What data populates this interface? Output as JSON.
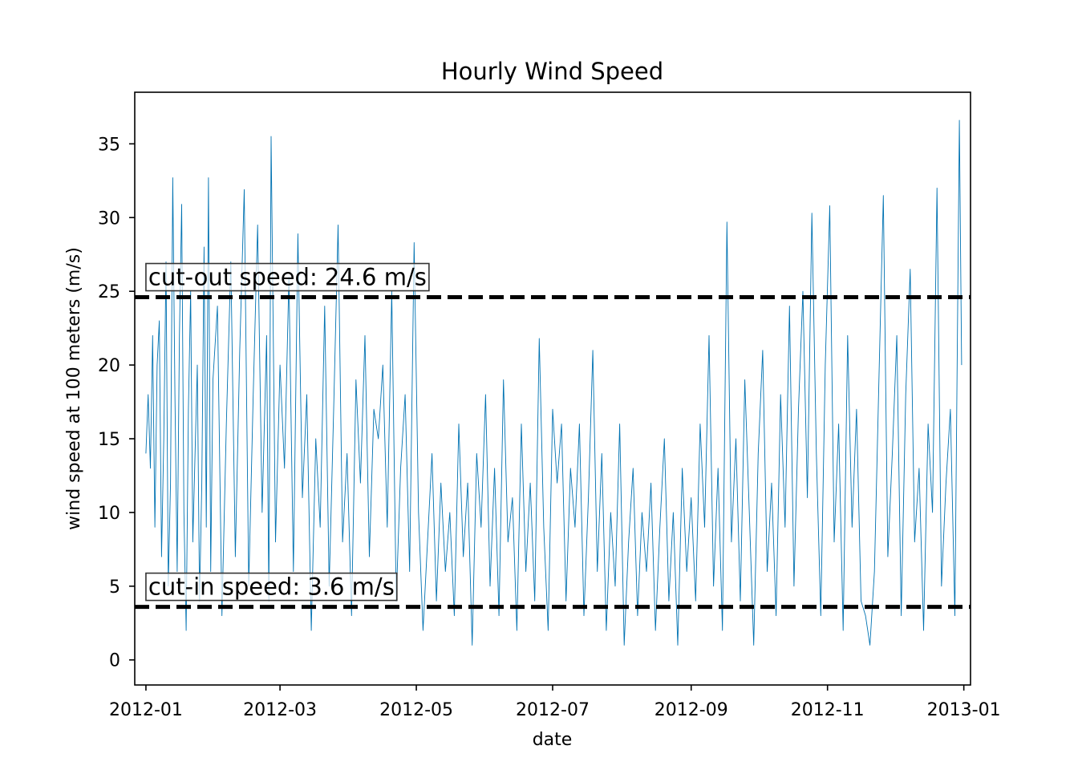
{
  "chart_data": {
    "type": "line",
    "title": "Hourly Wind Speed",
    "xlabel": "date",
    "ylabel": "wind speed at 100 meters (m/s)",
    "xlim": [
      "2011-12-27",
      "2013-01-04"
    ],
    "ylim": [
      -1.7,
      38.5
    ],
    "x_ticks": [
      "2012-01",
      "2012-03",
      "2012-05",
      "2012-07",
      "2012-09",
      "2012-11",
      "2013-01"
    ],
    "y_ticks": [
      0,
      5,
      10,
      15,
      20,
      25,
      30,
      35
    ],
    "grid": false,
    "series": [
      {
        "color": "#0072b2",
        "points": [
          [
            "2012-01-01",
            14
          ],
          [
            "2012-01-02",
            18
          ],
          [
            "2012-01-03",
            13
          ],
          [
            "2012-01-04",
            22
          ],
          [
            "2012-01-05",
            9
          ],
          [
            "2012-01-06",
            20
          ],
          [
            "2012-01-07",
            23
          ],
          [
            "2012-01-08",
            7
          ],
          [
            "2012-01-09",
            15
          ],
          [
            "2012-01-10",
            27
          ],
          [
            "2012-01-11",
            5
          ],
          [
            "2012-01-12",
            12
          ],
          [
            "2012-01-13",
            32.7
          ],
          [
            "2012-01-14",
            18
          ],
          [
            "2012-01-15",
            6
          ],
          [
            "2012-01-16",
            22
          ],
          [
            "2012-01-17",
            30.9
          ],
          [
            "2012-01-18",
            10
          ],
          [
            "2012-01-19",
            2
          ],
          [
            "2012-01-20",
            17
          ],
          [
            "2012-01-21",
            25
          ],
          [
            "2012-01-22",
            8
          ],
          [
            "2012-01-23",
            14
          ],
          [
            "2012-01-24",
            20
          ],
          [
            "2012-01-25",
            4
          ],
          [
            "2012-01-26",
            12
          ],
          [
            "2012-01-27",
            28
          ],
          [
            "2012-01-28",
            9
          ],
          [
            "2012-01-29",
            32.7
          ],
          [
            "2012-01-30",
            6
          ],
          [
            "2012-01-31",
            19
          ],
          [
            "2012-02-02",
            24
          ],
          [
            "2012-02-04",
            3
          ],
          [
            "2012-02-06",
            16
          ],
          [
            "2012-02-08",
            27
          ],
          [
            "2012-02-10",
            7
          ],
          [
            "2012-02-12",
            21
          ],
          [
            "2012-02-14",
            31.9
          ],
          [
            "2012-02-16",
            5
          ],
          [
            "2012-02-18",
            18
          ],
          [
            "2012-02-20",
            29.5
          ],
          [
            "2012-02-22",
            10
          ],
          [
            "2012-02-24",
            22
          ],
          [
            "2012-02-25",
            4
          ],
          [
            "2012-02-26",
            35.5
          ],
          [
            "2012-02-28",
            8
          ],
          [
            "2012-03-01",
            20
          ],
          [
            "2012-03-03",
            13
          ],
          [
            "2012-03-05",
            26
          ],
          [
            "2012-03-07",
            6
          ],
          [
            "2012-03-09",
            28.9
          ],
          [
            "2012-03-11",
            11
          ],
          [
            "2012-03-13",
            18
          ],
          [
            "2012-03-15",
            2
          ],
          [
            "2012-03-17",
            15
          ],
          [
            "2012-03-19",
            9
          ],
          [
            "2012-03-21",
            24
          ],
          [
            "2012-03-23",
            5
          ],
          [
            "2012-03-25",
            17
          ],
          [
            "2012-03-27",
            29.5
          ],
          [
            "2012-03-29",
            8
          ],
          [
            "2012-03-31",
            14
          ],
          [
            "2012-04-02",
            3
          ],
          [
            "2012-04-04",
            19
          ],
          [
            "2012-04-06",
            12
          ],
          [
            "2012-04-08",
            22
          ],
          [
            "2012-04-10",
            7
          ],
          [
            "2012-04-12",
            17
          ],
          [
            "2012-04-14",
            15
          ],
          [
            "2012-04-16",
            20
          ],
          [
            "2012-04-18",
            9
          ],
          [
            "2012-04-20",
            25
          ],
          [
            "2012-04-22",
            4
          ],
          [
            "2012-04-24",
            13
          ],
          [
            "2012-04-26",
            18
          ],
          [
            "2012-04-28",
            6
          ],
          [
            "2012-04-30",
            28.3
          ],
          [
            "2012-05-02",
            10
          ],
          [
            "2012-05-04",
            2
          ],
          [
            "2012-05-06",
            8
          ],
          [
            "2012-05-08",
            14
          ],
          [
            "2012-05-10",
            4
          ],
          [
            "2012-05-12",
            12
          ],
          [
            "2012-05-14",
            6
          ],
          [
            "2012-05-16",
            10
          ],
          [
            "2012-05-18",
            3
          ],
          [
            "2012-05-20",
            16
          ],
          [
            "2012-05-22",
            7
          ],
          [
            "2012-05-24",
            12
          ],
          [
            "2012-05-26",
            1
          ],
          [
            "2012-05-28",
            14
          ],
          [
            "2012-05-30",
            9
          ],
          [
            "2012-06-01",
            18
          ],
          [
            "2012-06-03",
            5
          ],
          [
            "2012-06-05",
            13
          ],
          [
            "2012-06-07",
            3
          ],
          [
            "2012-06-09",
            19
          ],
          [
            "2012-06-11",
            8
          ],
          [
            "2012-06-13",
            11
          ],
          [
            "2012-06-15",
            2
          ],
          [
            "2012-06-17",
            16
          ],
          [
            "2012-06-19",
            6
          ],
          [
            "2012-06-21",
            12
          ],
          [
            "2012-06-23",
            4
          ],
          [
            "2012-06-25",
            21.8
          ],
          [
            "2012-06-27",
            9
          ],
          [
            "2012-06-29",
            2
          ],
          [
            "2012-07-01",
            17
          ],
          [
            "2012-07-03",
            12
          ],
          [
            "2012-07-05",
            16
          ],
          [
            "2012-07-07",
            4
          ],
          [
            "2012-07-09",
            13
          ],
          [
            "2012-07-11",
            9
          ],
          [
            "2012-07-13",
            16
          ],
          [
            "2012-07-15",
            3
          ],
          [
            "2012-07-17",
            11
          ],
          [
            "2012-07-19",
            21
          ],
          [
            "2012-07-21",
            6
          ],
          [
            "2012-07-23",
            14
          ],
          [
            "2012-07-25",
            2
          ],
          [
            "2012-07-27",
            10
          ],
          [
            "2012-07-29",
            5
          ],
          [
            "2012-07-31",
            16
          ],
          [
            "2012-08-02",
            1
          ],
          [
            "2012-08-04",
            8
          ],
          [
            "2012-08-06",
            13
          ],
          [
            "2012-08-08",
            3
          ],
          [
            "2012-08-10",
            10
          ],
          [
            "2012-08-12",
            6
          ],
          [
            "2012-08-14",
            12
          ],
          [
            "2012-08-16",
            2
          ],
          [
            "2012-08-18",
            9
          ],
          [
            "2012-08-20",
            15
          ],
          [
            "2012-08-22",
            4
          ],
          [
            "2012-08-24",
            10
          ],
          [
            "2012-08-26",
            1
          ],
          [
            "2012-08-28",
            13
          ],
          [
            "2012-08-30",
            6
          ],
          [
            "2012-09-01",
            11
          ],
          [
            "2012-09-03",
            4
          ],
          [
            "2012-09-05",
            16
          ],
          [
            "2012-09-07",
            9
          ],
          [
            "2012-09-09",
            22
          ],
          [
            "2012-09-11",
            5
          ],
          [
            "2012-09-13",
            13
          ],
          [
            "2012-09-15",
            2
          ],
          [
            "2012-09-17",
            29.7
          ],
          [
            "2012-09-19",
            8
          ],
          [
            "2012-09-21",
            15
          ],
          [
            "2012-09-23",
            4
          ],
          [
            "2012-09-25",
            19
          ],
          [
            "2012-09-27",
            10
          ],
          [
            "2012-09-29",
            1
          ],
          [
            "2012-10-01",
            14
          ],
          [
            "2012-10-03",
            21
          ],
          [
            "2012-10-05",
            6
          ],
          [
            "2012-10-07",
            12
          ],
          [
            "2012-10-09",
            3
          ],
          [
            "2012-10-11",
            18
          ],
          [
            "2012-10-13",
            9
          ],
          [
            "2012-10-15",
            24
          ],
          [
            "2012-10-17",
            5
          ],
          [
            "2012-10-19",
            17
          ],
          [
            "2012-10-21",
            25
          ],
          [
            "2012-10-23",
            11
          ],
          [
            "2012-10-25",
            30.3
          ],
          [
            "2012-10-27",
            14
          ],
          [
            "2012-10-29",
            3
          ],
          [
            "2012-10-31",
            20
          ],
          [
            "2012-11-02",
            30.8
          ],
          [
            "2012-11-04",
            8
          ],
          [
            "2012-11-06",
            16
          ],
          [
            "2012-11-08",
            2
          ],
          [
            "2012-11-10",
            22
          ],
          [
            "2012-11-12",
            9
          ],
          [
            "2012-11-14",
            17
          ],
          [
            "2012-11-16",
            4
          ],
          [
            "2012-11-18",
            3
          ],
          [
            "2012-11-20",
            1
          ],
          [
            "2012-11-22",
            6
          ],
          [
            "2012-11-24",
            19
          ],
          [
            "2012-11-26",
            31.5
          ],
          [
            "2012-11-28",
            7
          ],
          [
            "2012-11-30",
            14
          ],
          [
            "2012-12-02",
            22
          ],
          [
            "2012-12-04",
            3
          ],
          [
            "2012-12-06",
            18
          ],
          [
            "2012-12-08",
            26.5
          ],
          [
            "2012-12-10",
            8
          ],
          [
            "2012-12-12",
            13
          ],
          [
            "2012-12-14",
            2
          ],
          [
            "2012-12-16",
            16
          ],
          [
            "2012-12-18",
            10
          ],
          [
            "2012-12-20",
            32
          ],
          [
            "2012-12-22",
            5
          ],
          [
            "2012-12-24",
            12
          ],
          [
            "2012-12-26",
            17
          ],
          [
            "2012-12-28",
            3
          ],
          [
            "2012-12-30",
            36.6
          ],
          [
            "2012-12-31",
            20
          ]
        ]
      }
    ],
    "annotations": [
      {
        "label": "cut-out speed: 24.6 m/s",
        "y": 24.6
      },
      {
        "label": "cut-in speed: 3.6 m/s",
        "y": 3.6
      }
    ]
  }
}
